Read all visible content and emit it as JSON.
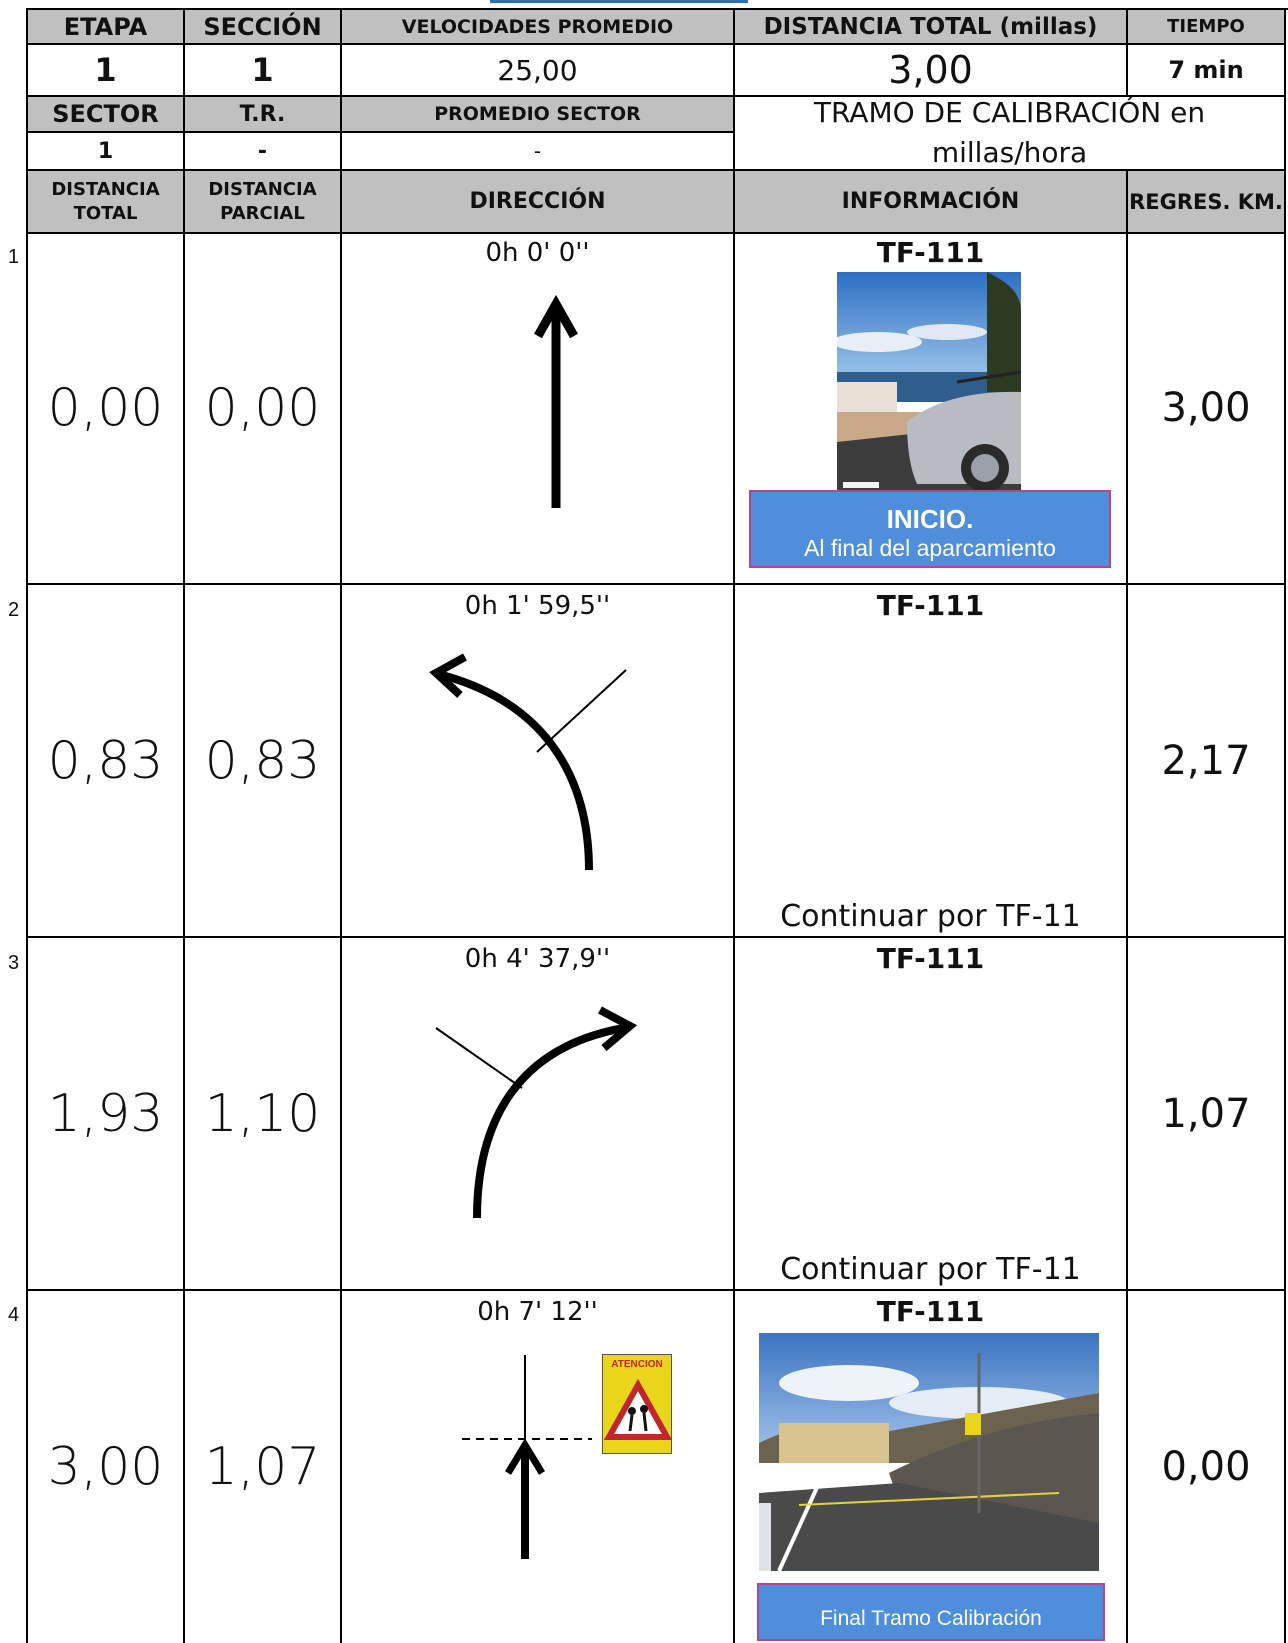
{
  "header": {
    "etapa_label": "ETAPA",
    "seccion_label": "SECCIÓN",
    "velocidades_label": "VELOCIDADES PROMEDIO",
    "distancia_total_label": "DISTANCIA TOTAL (millas)",
    "tiempo_label": "TIEMPO",
    "etapa_value": "1",
    "seccion_value": "1",
    "velocidades_value": "25,00",
    "distancia_total_value": "3,00",
    "tiempo_value": "7 min",
    "sector_label": "SECTOR",
    "tr_label": "T.R.",
    "promedio_sector_label": "PROMEDIO SECTOR",
    "tramo_text": "TRAMO DE CALIBRACIÓN en millas/hora",
    "sector_value": "1",
    "tr_value": "-",
    "promedio_sector_value": "-"
  },
  "columns": {
    "distancia_total": "DISTANCIA TOTAL",
    "distancia_parcial": "DISTANCIA PARCIAL",
    "direccion": "DIRECCIÓN",
    "informacion": "INFORMACIÓN",
    "regres": "REGRES. KM."
  },
  "rows": [
    {
      "num": "1",
      "total": "0,00",
      "parcial": "0,00",
      "time": "0h 0' 0''",
      "road": "TF-111",
      "regres": "3,00",
      "box_title": "INICIO.",
      "box_sub": "Al final del aparcamiento",
      "direction": "straight-arrow-icon"
    },
    {
      "num": "2",
      "total": "0,83",
      "parcial": "0,83",
      "time": "0h 1' 59,5''",
      "road": "TF-111",
      "regres": "2,17",
      "note": "Continuar por TF-11",
      "direction": "bear-left-arrow-icon"
    },
    {
      "num": "3",
      "total": "1,93",
      "parcial": "1,10",
      "time": "0h 4' 37,9''",
      "road": "TF-111",
      "regres": "1,07",
      "note": "Continuar por TF-11",
      "direction": "bear-right-arrow-icon"
    },
    {
      "num": "4",
      "total": "3,00",
      "parcial": "1,07",
      "time": "0h 7' 12''",
      "road": "TF-111",
      "regres": "0,00",
      "box_sub": "Final Tramo Calibración",
      "sign_text": "ATENCION",
      "direction": "crossroad-straight-arrow-icon"
    }
  ]
}
